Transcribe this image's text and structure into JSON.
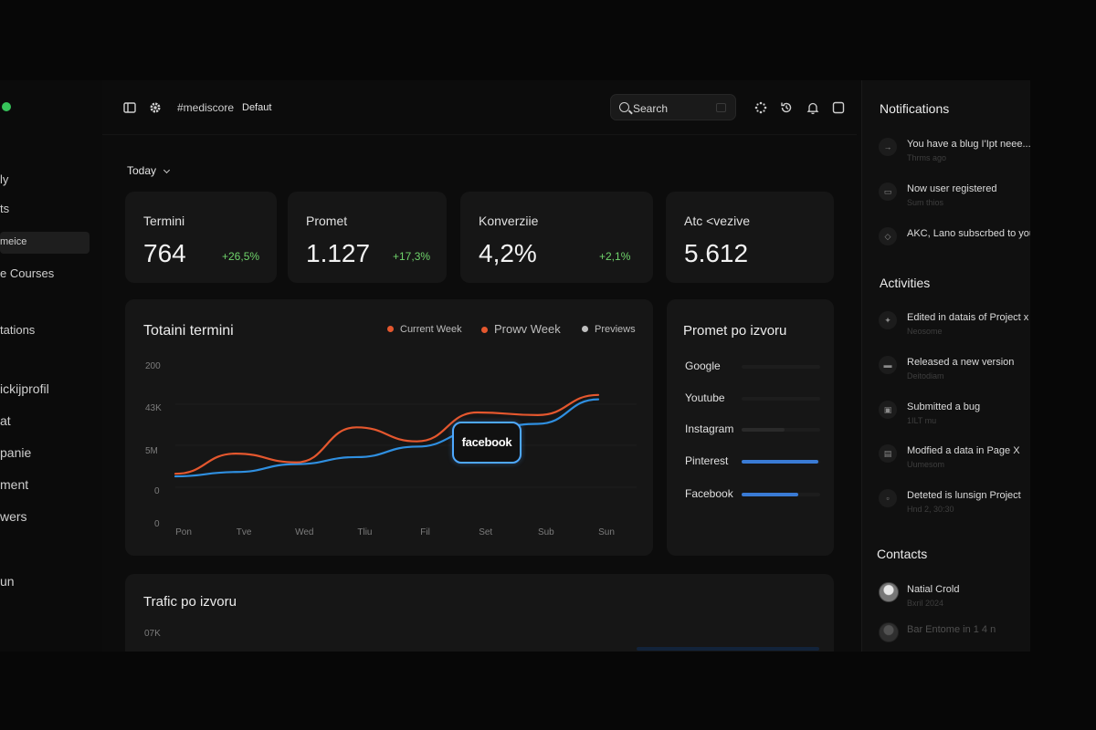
{
  "sidebar": {
    "items": [
      "ly",
      "ts",
      "meice",
      "e Courses",
      "tations",
      "ickijprofil",
      "at",
      "panie",
      "ment",
      "wers",
      "un"
    ]
  },
  "topbar": {
    "channel": "#mediscore",
    "preset": "Defaut",
    "search_label": "Search"
  },
  "filter": {
    "period": "Today"
  },
  "kpis": [
    {
      "title": "Termini",
      "value": "764",
      "delta": "+26,5%"
    },
    {
      "title": "Promet",
      "value": "1.127",
      "delta": "+17,3%"
    },
    {
      "title": "Konverziie",
      "value": "4,2%",
      "delta": "+2,1%"
    },
    {
      "title": "Atc <vezive",
      "value": "5.612",
      "delta": ""
    }
  ],
  "chart": {
    "title": "Totaini termini",
    "tooltip": "facebook",
    "legend": [
      {
        "label": "Current Week",
        "color": "#e4572e"
      },
      {
        "label": "Prowv Week",
        "color": "#e4572e"
      },
      {
        "label": "Previews",
        "color": "#bfbfbf"
      }
    ]
  },
  "chart_data": {
    "type": "line",
    "title": "Totaini termini",
    "categories": [
      "Pon",
      "Tve",
      "Wed",
      "Tliu",
      "Fil",
      "Set",
      "Sub",
      "Sun"
    ],
    "y_tick_labels": [
      "200",
      "43K",
      "5M",
      "0",
      "0"
    ],
    "series": [
      {
        "name": "Current Week",
        "color": "#e4572e",
        "values": [
          0.05,
          0.28,
          0.18,
          0.58,
          0.42,
          0.75,
          0.72,
          0.95
        ]
      },
      {
        "name": "Previews",
        "color": "#2f8fe0",
        "values": [
          0.02,
          0.07,
          0.16,
          0.24,
          0.36,
          0.54,
          0.62,
          0.9
        ]
      }
    ],
    "grid": true,
    "legend_position": "top-right"
  },
  "sources": {
    "title": "Promet po izvoru",
    "rows": [
      {
        "label": "Google",
        "share": 0.0,
        "color": "#2a2a2a"
      },
      {
        "label": "Youtube",
        "share": 0.0,
        "color": "#2a2a2a"
      },
      {
        "label": "Instagram",
        "share": 0.55,
        "color": "#2a2a2a"
      },
      {
        "label": "Pinterest",
        "share": 0.98,
        "color": "#3a7bd5"
      },
      {
        "label": "Facebook",
        "share": 0.72,
        "color": "#3a7bd5"
      }
    ]
  },
  "traffic": {
    "title": "Trafic po izvoru",
    "y_tick": "07K"
  },
  "notifications": {
    "title": "Notifications",
    "items": [
      {
        "text": "You have a blug I'Ipt neee...",
        "sub": "Thrms ago",
        "icon": "arrow-right-icon"
      },
      {
        "text": "Now user registered",
        "sub": "Sum thios",
        "icon": "user-icon"
      },
      {
        "text": "AKC, Lano subscrbed to you",
        "sub": "",
        "icon": "check-icon"
      }
    ]
  },
  "activities": {
    "title": "Activities",
    "items": [
      {
        "text": "Edited in datais of Project x",
        "sub": "Neosome"
      },
      {
        "text": "Released a new version",
        "sub": "Deitodiam"
      },
      {
        "text": "Submitted a bug",
        "sub": "1ILT mu"
      },
      {
        "text": "Modfied a data in Page X",
        "sub": "Uumesom"
      },
      {
        "text": "Deteted is lunsign Project",
        "sub": "Hnd 2, 30:30"
      }
    ]
  },
  "contacts": {
    "title": "Contacts",
    "items": [
      {
        "name": "Natial Crold",
        "sub": "Bxril 2024"
      },
      {
        "name": "Bar Entome in 1 4 n",
        "sub": ""
      }
    ]
  }
}
